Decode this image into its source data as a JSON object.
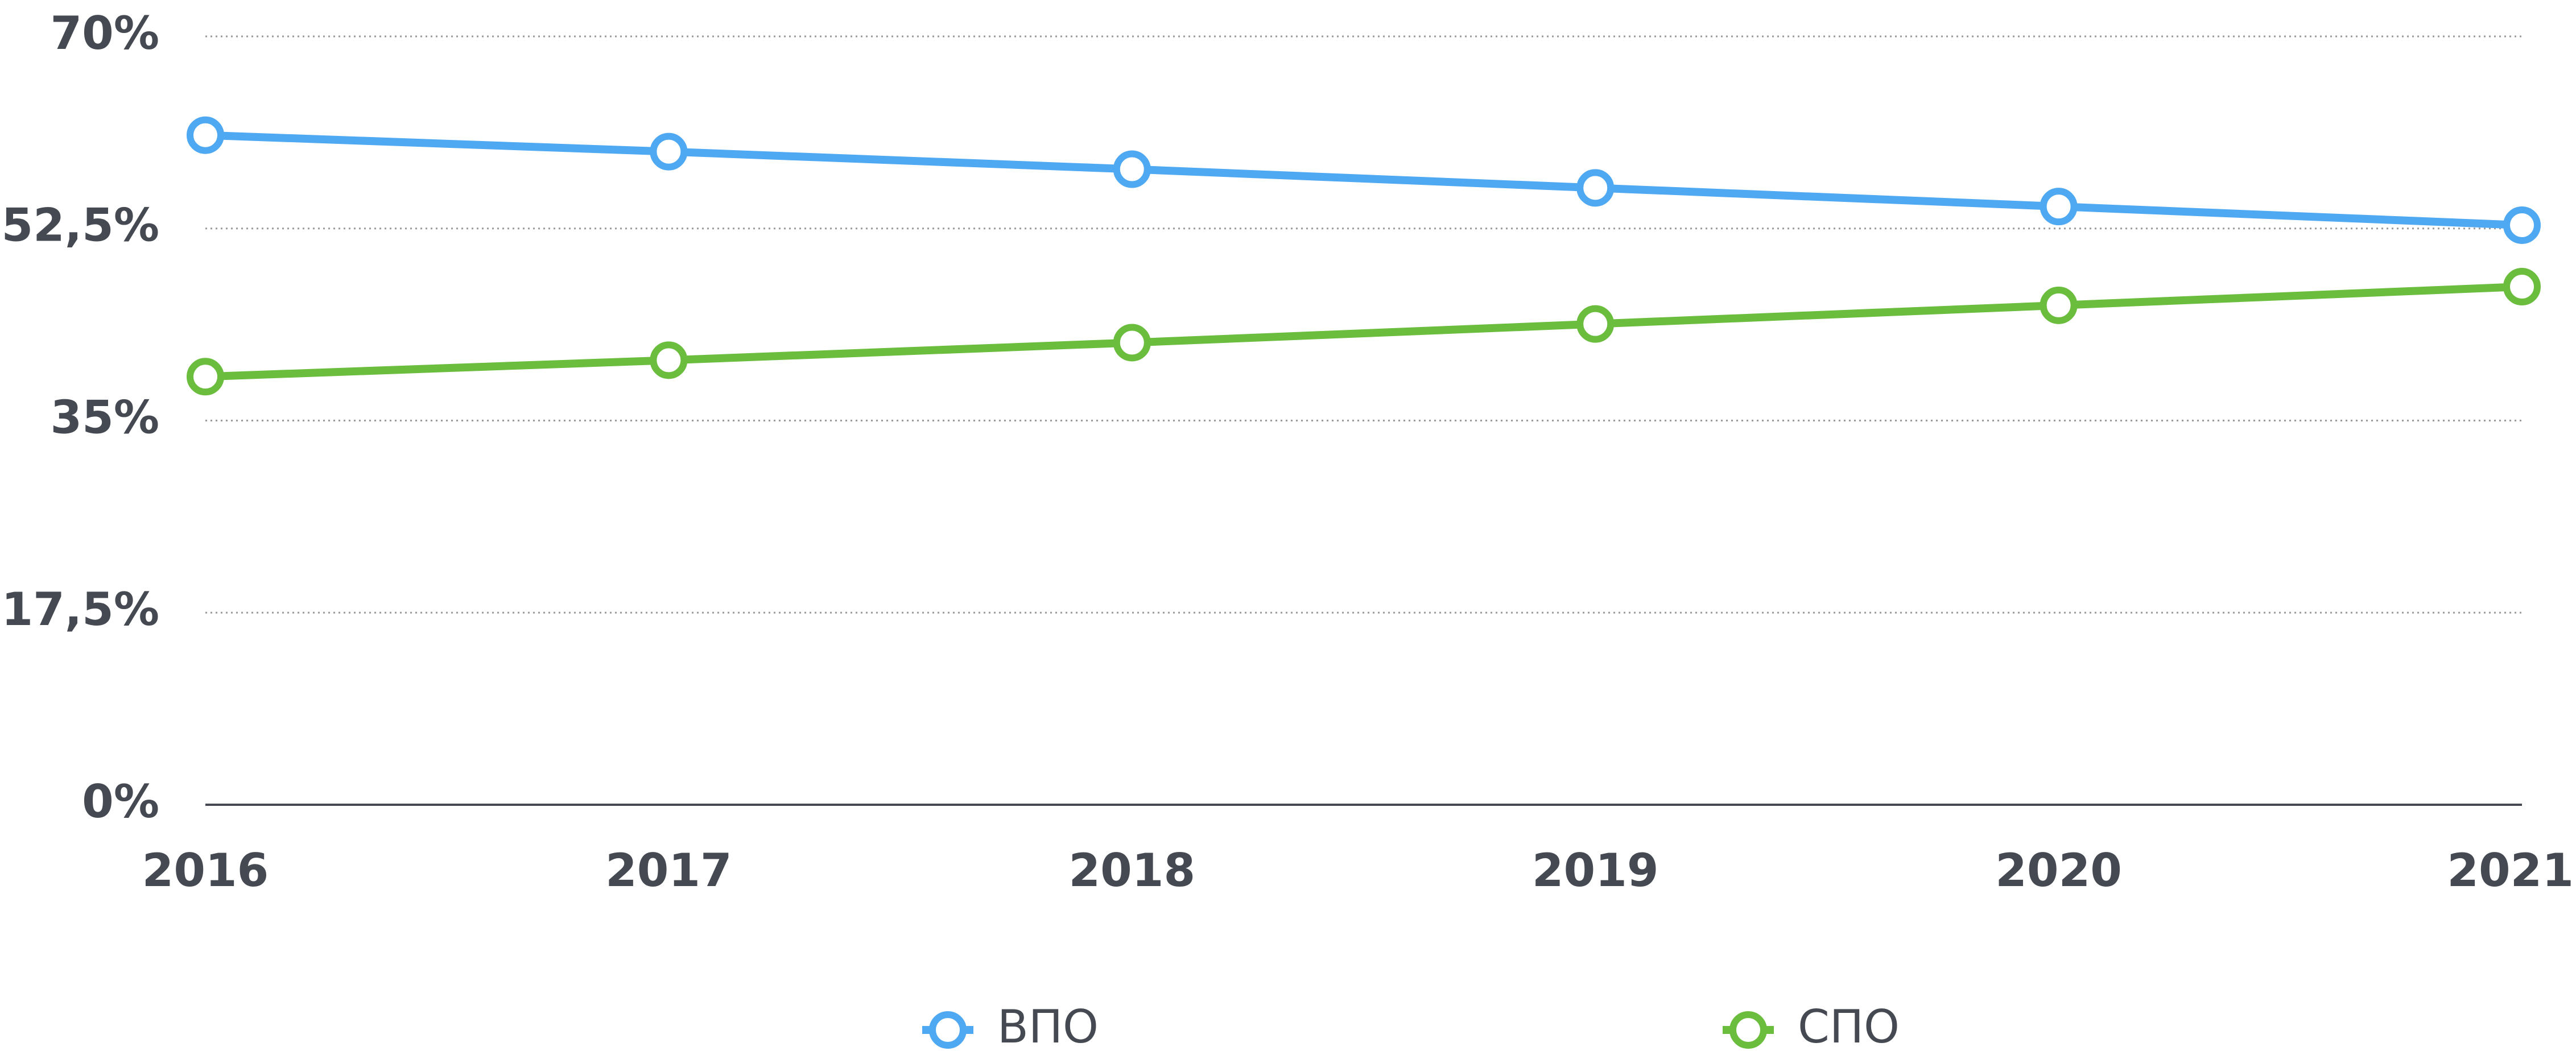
{
  "chart_data": {
    "type": "line",
    "categories": [
      "2016",
      "2017",
      "2018",
      "2019",
      "2020",
      "2021"
    ],
    "series": [
      {
        "name": "ВПО",
        "color": "#4fa8f2",
        "values": [
          61,
          59.5,
          57.9,
          56.2,
          54.5,
          52.8
        ]
      },
      {
        "name": "СПО",
        "color": "#6bbd3e",
        "values": [
          39,
          40.5,
          42.1,
          43.8,
          45.5,
          47.2
        ]
      }
    ],
    "ylim": [
      0,
      70
    ],
    "yticks": [
      {
        "value": 0,
        "label": "0%"
      },
      {
        "value": 17.5,
        "label": "17,5%"
      },
      {
        "value": 35,
        "label": "35%"
      },
      {
        "value": 52.5,
        "label": "52,5%"
      },
      {
        "value": 70,
        "label": "70%"
      }
    ],
    "grid": true,
    "legend": "bottom"
  }
}
